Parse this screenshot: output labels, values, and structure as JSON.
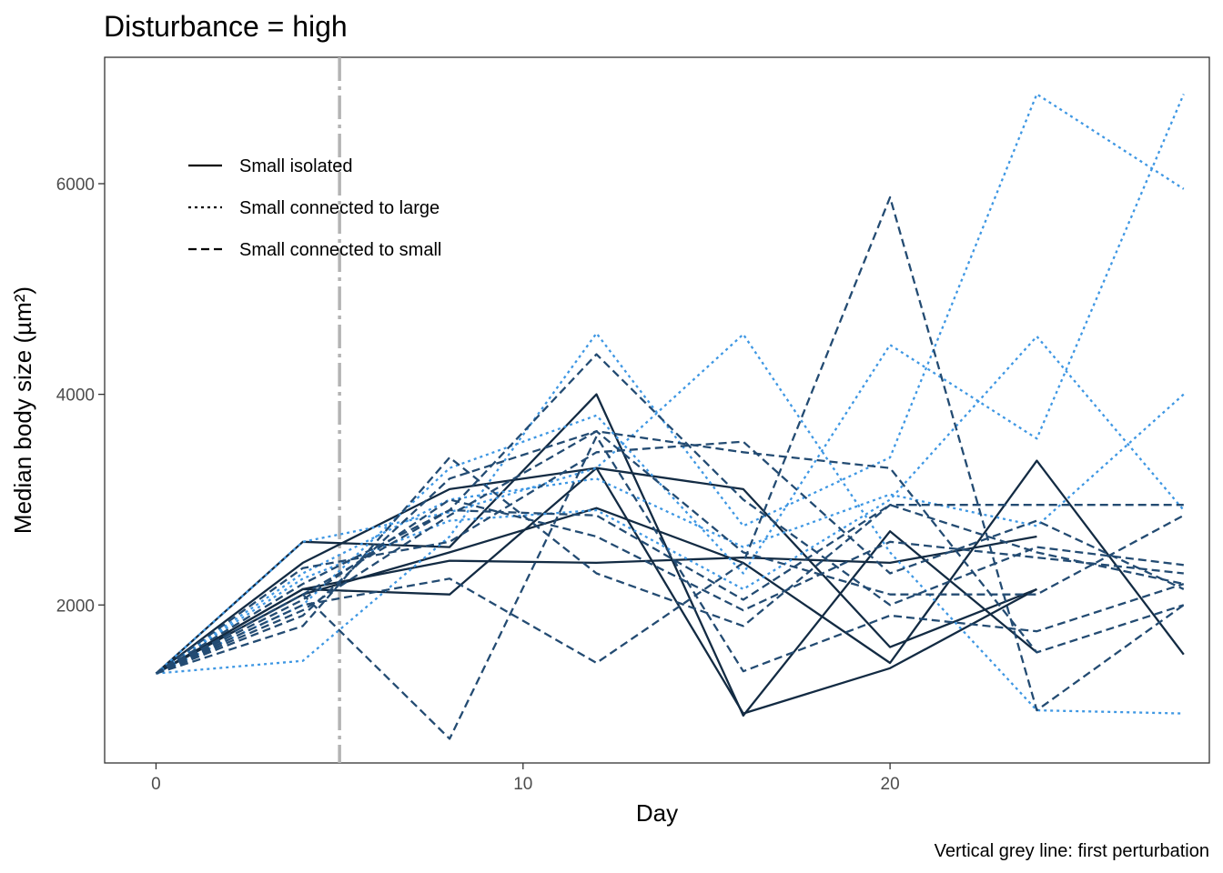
{
  "chart_data": {
    "type": "line",
    "title": "Disturbance = high",
    "xlabel": "Day",
    "ylabel": "Median body size (µm²)",
    "caption": "Vertical grey line: first perturbation",
    "xlim": [
      -1.4,
      28.7
    ],
    "ylim": [
      500,
      7200
    ],
    "x_ticks": [
      0,
      10,
      20
    ],
    "y_ticks": [
      2000,
      4000,
      6000
    ],
    "grid": false,
    "legend_position": "top-left",
    "legend": [
      {
        "label": "Small isolated",
        "dash": "solid"
      },
      {
        "label": "Small connected to large",
        "dash": "dotted"
      },
      {
        "label": "Small connected to small",
        "dash": "dashed"
      }
    ],
    "vline": {
      "x": 5,
      "color": "#b3b3b3"
    },
    "colors": {
      "Small isolated": "#132b43",
      "Small connected to large": "#3e97e3",
      "Small connected to small": "#234b72"
    },
    "series": [
      {
        "group": "Small isolated",
        "x": [
          0,
          4,
          8,
          12,
          16,
          20,
          24
        ],
        "y": [
          1350,
          2600,
          2550,
          4000,
          950,
          2700,
          1550
        ]
      },
      {
        "group": "Small isolated",
        "x": [
          0,
          4,
          8,
          12,
          16,
          20,
          24
        ],
        "y": [
          1350,
          2400,
          3100,
          3300,
          3100,
          1600,
          2150
        ]
      },
      {
        "group": "Small isolated",
        "x": [
          0,
          4,
          8,
          12,
          16,
          20,
          24
        ],
        "y": [
          1350,
          2150,
          2100,
          3300,
          970,
          1400,
          2150
        ]
      },
      {
        "group": "Small isolated",
        "x": [
          0,
          4,
          8,
          12,
          16,
          20,
          24
        ],
        "y": [
          1350,
          2150,
          2420,
          2400,
          2450,
          2400,
          2650
        ]
      },
      {
        "group": "Small isolated",
        "x": [
          0,
          4,
          8,
          12,
          16,
          20,
          24,
          28
        ],
        "y": [
          1350,
          2100,
          2500,
          2920,
          2400,
          1450,
          3370,
          1530
        ]
      },
      {
        "group": "Small connected to large",
        "x": [
          0,
          4,
          8,
          12,
          16,
          20,
          24,
          28
        ],
        "y": [
          1350,
          1470,
          2650,
          4580,
          2750,
          3400,
          6850,
          5950
        ]
      },
      {
        "group": "Small connected to large",
        "x": [
          0,
          4,
          8,
          12,
          16,
          20,
          24,
          28
        ],
        "y": [
          1350,
          2600,
          2880,
          3300,
          4570,
          2500,
          1000,
          970
        ]
      },
      {
        "group": "Small connected to large",
        "x": [
          0,
          4,
          8,
          12,
          16,
          20,
          24,
          28
        ],
        "y": [
          1350,
          2000,
          3300,
          3800,
          2300,
          4470,
          3580,
          6850
        ]
      },
      {
        "group": "Small connected to large",
        "x": [
          0,
          4,
          8,
          12,
          16,
          20,
          24,
          28
        ],
        "y": [
          1350,
          2250,
          2800,
          2900,
          2150,
          3000,
          4550,
          2900
        ]
      },
      {
        "group": "Small connected to large",
        "x": [
          0,
          4,
          8,
          12,
          16,
          20,
          24,
          28
        ],
        "y": [
          1350,
          2300,
          3000,
          3200,
          2550,
          3050,
          2750,
          4000
        ]
      },
      {
        "group": "Small connected to small",
        "x": [
          0,
          4,
          8,
          12,
          16,
          20,
          24,
          28
        ],
        "y": [
          1350,
          2000,
          2250,
          1450,
          2400,
          5870,
          1000,
          2000
        ]
      },
      {
        "group": "Small connected to small",
        "x": [
          0,
          4,
          8,
          12,
          16,
          20,
          24,
          28
        ],
        "y": [
          1350,
          1800,
          3400,
          2300,
          1800,
          2950,
          2950,
          2950
        ]
      },
      {
        "group": "Small connected to small",
        "x": [
          0,
          4,
          8,
          12,
          16,
          20,
          24,
          28
        ],
        "y": [
          1350,
          1900,
          3200,
          3650,
          2500,
          2100,
          2100,
          2850
        ]
      },
      {
        "group": "Small connected to small",
        "x": [
          0,
          4,
          8,
          12,
          16,
          20,
          24,
          28
        ],
        "y": [
          1350,
          2100,
          2900,
          4380,
          3000,
          2000,
          2550,
          2380
        ]
      },
      {
        "group": "Small connected to small",
        "x": [
          0,
          4,
          8,
          12,
          16,
          20,
          24,
          28
        ],
        "y": [
          1350,
          2350,
          2600,
          3450,
          3550,
          2300,
          2800,
          2150
        ]
      },
      {
        "group": "Small connected to small",
        "x": [
          0,
          4,
          8,
          12,
          16,
          20,
          24,
          28
        ],
        "y": [
          1350,
          1950,
          2850,
          3650,
          3450,
          3300,
          1550,
          2000
        ]
      },
      {
        "group": "Small connected to small",
        "x": [
          0,
          4,
          8,
          12,
          16,
          20,
          24,
          28
        ],
        "y": [
          1350,
          2050,
          3000,
          2650,
          1950,
          2600,
          2450,
          2300
        ]
      },
      {
        "group": "Small connected to small",
        "x": [
          0,
          4,
          8,
          12,
          16,
          20,
          24,
          28
        ],
        "y": [
          1350,
          2100,
          730,
          3600,
          1370,
          1900,
          1750,
          2200
        ]
      },
      {
        "group": "Small connected to small",
        "x": [
          0,
          4,
          8,
          12,
          16,
          20,
          24,
          28
        ],
        "y": [
          1350,
          2200,
          2900,
          2850,
          2050,
          2950,
          2500,
          2200
        ]
      }
    ]
  }
}
